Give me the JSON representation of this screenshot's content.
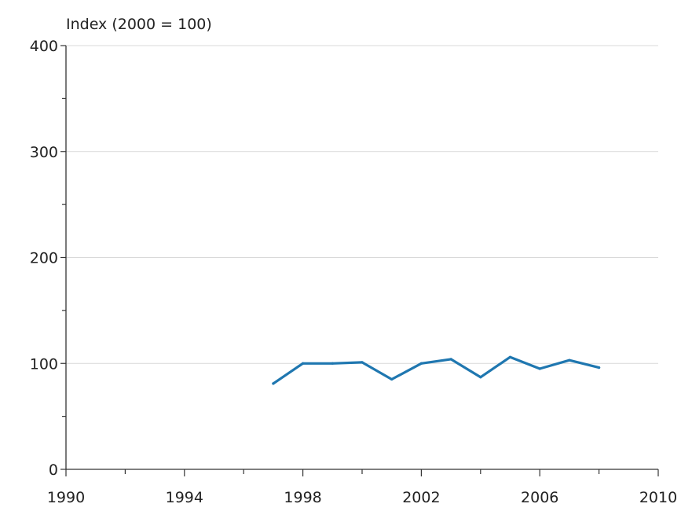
{
  "chart_data": {
    "type": "line",
    "title": "",
    "ylabel": "Index (2000 = 100)",
    "xlabel": "",
    "xlim": [
      1990,
      2010
    ],
    "ylim": [
      0,
      400
    ],
    "x_ticks": [
      1990,
      1994,
      1998,
      2002,
      2006,
      2010
    ],
    "y_ticks": [
      0,
      100,
      200,
      300,
      400
    ],
    "grid": {
      "horizontal": true,
      "vertical": false
    },
    "series": [
      {
        "color": "#1f77b0",
        "x": [
          1997,
          1998,
          1999,
          2000,
          2001,
          2002,
          2003,
          2004,
          2005,
          2006,
          2007,
          2008
        ],
        "y": [
          81,
          100,
          100,
          101,
          85,
          100,
          104,
          87,
          106,
          95,
          103,
          96
        ]
      }
    ]
  }
}
